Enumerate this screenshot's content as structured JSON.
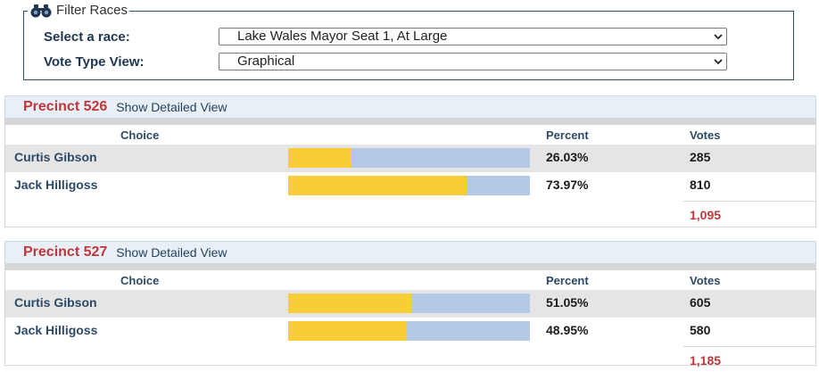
{
  "filter": {
    "legend": "Filter Races",
    "legend_icon": "binoculars-icon",
    "race_label": "Select a race:",
    "race_value": "Lake Wales Mayor Seat 1, At Large",
    "view_label": "Vote Type View:",
    "view_value": "Graphical"
  },
  "columns": {
    "choice": "Choice",
    "percent": "Percent",
    "votes": "Votes"
  },
  "colors": {
    "bar_fill": "#f9cd37",
    "bar_bg": "#b3c9e6",
    "precinct_title": "#c0373a"
  },
  "precincts": [
    {
      "name": "Precinct 526",
      "detail_link": "Show Detailed View",
      "candidates": [
        {
          "name": "Curtis Gibson",
          "percent": "26.03%",
          "share": 26.03,
          "votes": "285"
        },
        {
          "name": "Jack Hilligoss",
          "percent": "73.97%",
          "share": 73.97,
          "votes": "810"
        }
      ],
      "total": "1,095"
    },
    {
      "name": "Precinct 527",
      "detail_link": "Show Detailed View",
      "candidates": [
        {
          "name": "Curtis Gibson",
          "percent": "51.05%",
          "share": 51.05,
          "votes": "605"
        },
        {
          "name": "Jack Hilligoss",
          "percent": "48.95%",
          "share": 48.95,
          "votes": "580"
        }
      ],
      "total": "1,185"
    }
  ]
}
